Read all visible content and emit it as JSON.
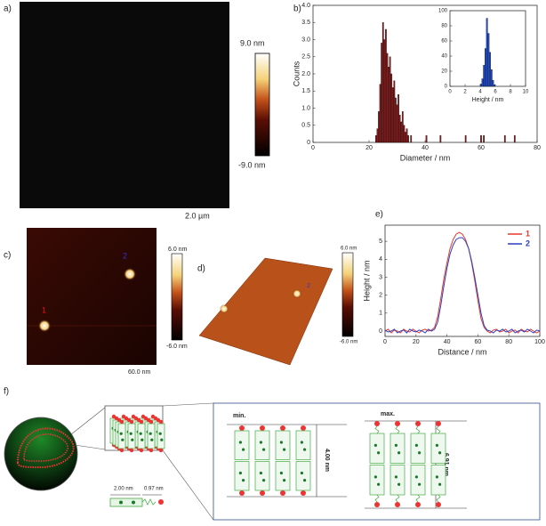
{
  "panels": {
    "a": {
      "label": "a)",
      "scale_max": "9.0 nm",
      "scale_min": "-9.0 nm",
      "scale_bar": "2.0 µm"
    },
    "b": {
      "label": "b)"
    },
    "c": {
      "label": "c)",
      "scale_max": "6.0 nm",
      "scale_min": "-6.0 nm",
      "scale_bar": "60.0 nm",
      "marker_1": "1",
      "marker_2": "2"
    },
    "d": {
      "label": "d)",
      "scale_max": "6.0 nm",
      "scale_min": "-6.0 nm",
      "marker_2": "2"
    },
    "e": {
      "label": "e)"
    },
    "f": {
      "label": "f)",
      "min_label": "min.",
      "max_label": "max.",
      "min_height": "4.00 nm",
      "max_height": "6.91 nm",
      "core_length": "2.00 nm",
      "tail_length": "0.97 nm"
    }
  },
  "chart_data": [
    {
      "type": "bar",
      "xlabel": "Diameter / nm",
      "ylabel": "Counts",
      "color": "#8b1a1a",
      "x": [
        22.5,
        23,
        23.5,
        24,
        24.5,
        25,
        25.5,
        26,
        26.5,
        27,
        27.5,
        28,
        28.5,
        29,
        29.5,
        30,
        30.5,
        31,
        31.5,
        32,
        32.5,
        33,
        33.5,
        34,
        35,
        40.5,
        45.5,
        54.5,
        60,
        61,
        68.5,
        72
      ],
      "values": [
        0.2,
        0.4,
        0.9,
        1.7,
        2.9,
        3.5,
        3.0,
        3.3,
        2.6,
        2.2,
        2.5,
        2.0,
        1.6,
        1.8,
        1.3,
        1.1,
        1.4,
        0.8,
        0.6,
        0.9,
        0.5,
        0.3,
        0.4,
        0.2,
        0.2,
        0.2,
        0.2,
        0.2,
        0.2,
        0.2,
        0.2,
        0.2
      ],
      "xlim": [
        0,
        80
      ],
      "xticks": [
        0,
        20,
        40,
        60,
        80
      ],
      "ylim": [
        0,
        4
      ],
      "yticks": [
        0,
        0.5,
        {
          "value": 1,
          "label": "1.0"
        },
        1.5,
        {
          "value": 2,
          "label": "2.0"
        },
        2.5,
        {
          "value": 3,
          "label": "3.0"
        },
        3.5,
        {
          "value": 4,
          "label": "4.0"
        }
      ]
    },
    {
      "type": "bar",
      "xlabel": "Height / nm",
      "color": "#1f4fd8",
      "x": [
        4.1,
        4.3,
        4.5,
        4.7,
        4.9,
        5.1,
        5.3,
        5.5,
        5.7,
        5.9
      ],
      "values": [
        3,
        10,
        28,
        50,
        90,
        70,
        45,
        22,
        8,
        2
      ],
      "xlim": [
        0,
        10
      ],
      "xticks": [
        0,
        2,
        4,
        6,
        8,
        10
      ],
      "ylim": [
        0,
        100
      ],
      "yticks": [
        0,
        20,
        40,
        60,
        80,
        100
      ]
    },
    {
      "type": "line",
      "xlabel": "Distance / nm",
      "ylabel": "Height / nm",
      "legend": "upper right",
      "x": [
        0,
        2,
        4,
        6,
        8,
        10,
        12,
        14,
        16,
        18,
        20,
        22,
        24,
        26,
        28,
        30,
        32,
        34,
        36,
        38,
        40,
        42,
        44,
        46,
        48,
        50,
        52,
        54,
        56,
        58,
        60,
        62,
        64,
        66,
        68,
        70,
        72,
        74,
        76,
        78,
        80,
        82,
        84,
        86,
        88,
        90,
        92,
        94,
        96,
        98,
        100
      ],
      "series": [
        {
          "name": "1",
          "color": "#e8372b",
          "values": [
            0.0,
            0.1,
            -0.1,
            0.05,
            0.0,
            -0.1,
            0.1,
            0.0,
            -0.05,
            0.1,
            0.0,
            -0.1,
            0.05,
            0.1,
            0.0,
            0.05,
            0.2,
            0.8,
            1.8,
            2.9,
            3.8,
            4.6,
            5.1,
            5.4,
            5.5,
            5.4,
            5.1,
            4.6,
            3.8,
            2.8,
            1.7,
            0.7,
            0.2,
            0.0,
            -0.1,
            0.05,
            0.1,
            -0.05,
            0.0,
            0.1,
            -0.1,
            0.0,
            0.05,
            -0.1,
            0.1,
            0.0,
            -0.05,
            0.1,
            0.0,
            -0.1,
            0.0
          ]
        },
        {
          "name": "2",
          "color": "#2b3fbf",
          "values": [
            0.05,
            -0.05,
            0.0,
            0.1,
            -0.1,
            0.0,
            0.05,
            -0.1,
            0.1,
            0.0,
            -0.05,
            0.05,
            0.0,
            -0.1,
            0.1,
            0.0,
            0.1,
            0.5,
            1.4,
            2.5,
            3.5,
            4.3,
            4.8,
            5.1,
            5.2,
            5.2,
            5.0,
            4.6,
            3.9,
            3.0,
            2.0,
            1.0,
            0.3,
            0.05,
            0.0,
            -0.1,
            0.05,
            0.0,
            0.1,
            -0.05,
            0.0,
            0.1,
            -0.1,
            0.0,
            0.05,
            -0.05,
            0.1,
            0.0,
            -0.1,
            0.05,
            0.0
          ]
        }
      ],
      "xlim": [
        0,
        100
      ],
      "xticks": [
        0,
        20,
        40,
        60,
        80,
        100
      ],
      "ylim": [
        -0.3,
        5.9
      ],
      "yticks": [
        0,
        1,
        2,
        3,
        4,
        5
      ]
    }
  ]
}
